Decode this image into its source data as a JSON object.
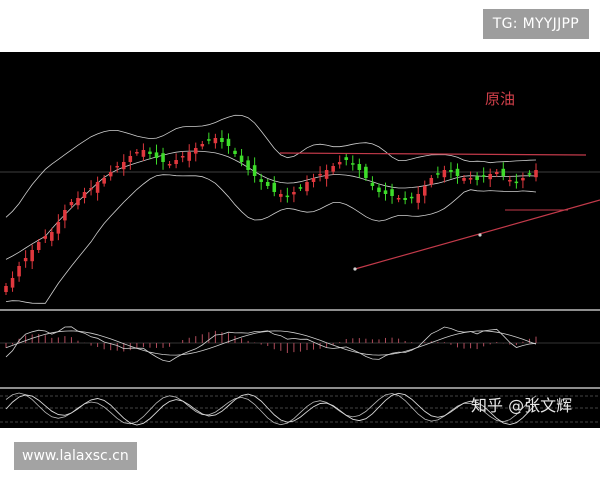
{
  "watermarks": {
    "top_right": "TG: MYYJJPP",
    "bottom_left": "www.lalaxsc.cn",
    "credit": "知乎 @张文辉"
  },
  "colors": {
    "background": "#000000",
    "candle_up": "#e0383e",
    "candle_down": "#3ddc2a",
    "bands": "#cfcfcf",
    "trendline": "#c23a4a",
    "macd_hist": "#b04c5c",
    "kdj": "#d9d9d9",
    "panel_separator": "#bdbdbd"
  },
  "chart_data": {
    "type": "candlestick",
    "title": "原油",
    "xlabel": "",
    "ylabel": "",
    "grid": false,
    "panels": [
      "price-with-bollinger-bands",
      "macd",
      "kdj"
    ],
    "annotations": [
      "resistance line",
      "rising trendline",
      "converging trendlines (triangle)"
    ],
    "price_range": [
      0,
      100
    ],
    "candles_close": [
      8,
      12,
      18,
      22,
      26,
      30,
      33,
      35,
      40,
      46,
      50,
      52,
      55,
      57,
      60,
      62,
      65,
      68,
      70,
      73,
      75,
      76,
      74,
      72,
      70,
      69,
      71,
      73,
      75,
      77,
      79,
      81,
      82,
      80,
      78,
      74,
      70,
      66,
      63,
      60,
      58,
      55,
      54,
      53,
      55,
      57,
      60,
      62,
      64,
      66,
      68,
      70,
      71,
      69,
      66,
      62,
      58,
      55,
      54,
      53,
      52,
      51,
      52,
      54,
      58,
      62,
      64,
      66,
      65,
      63,
      62,
      62,
      61,
      63,
      64,
      65,
      63,
      61,
      60,
      62,
      64,
      66
    ]
  }
}
